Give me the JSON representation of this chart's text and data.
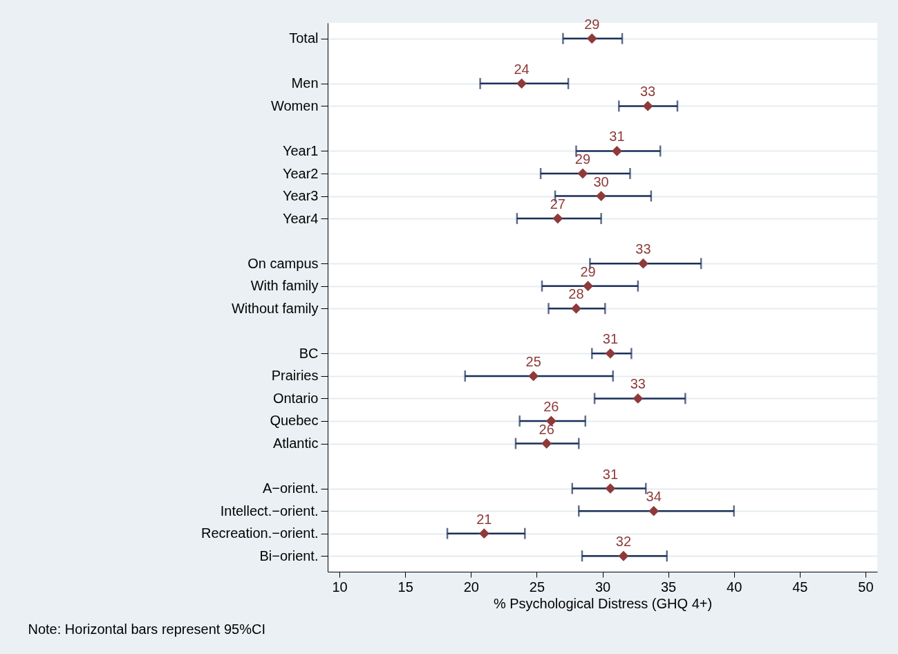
{
  "chart_data": {
    "type": "scatter",
    "orientation": "horizontal",
    "xlabel": "% Psychological Distress (GHQ 4+)",
    "annotations": [
      "Note: Horizontal bars represent 95%CI"
    ],
    "categories": [
      "Total",
      null,
      "Men",
      "Women",
      null,
      "Year1",
      "Year2",
      "Year3",
      "Year4",
      null,
      "On campus",
      "With family",
      "Without family",
      null,
      "BC",
      "Prairies",
      "Ontario",
      "Quebec",
      "Atlantic",
      null,
      "A−orient.",
      "Intellect.−orient.",
      "Recreation.−orient.",
      "Bi−orient."
    ],
    "series": [
      {
        "color": "#8e3a3a",
        "values": [
          29.2,
          null,
          23.85,
          33.45,
          null,
          31.1,
          28.5,
          29.9,
          26.6,
          null,
          33.1,
          28.9,
          28.0,
          null,
          30.6,
          24.75,
          32.7,
          26.1,
          25.75,
          null,
          30.6,
          33.9,
          21.0,
          31.6
        ],
        "errors": [
          [
            27.0,
            31.5
          ],
          null,
          [
            20.7,
            27.4
          ],
          [
            31.25,
            35.7
          ],
          null,
          [
            28.0,
            34.4
          ],
          [
            25.3,
            32.1
          ],
          [
            26.4,
            33.7
          ],
          [
            23.5,
            29.9
          ],
          null,
          [
            29.05,
            37.5
          ],
          [
            25.4,
            32.7
          ],
          [
            25.9,
            30.2
          ],
          null,
          [
            29.2,
            32.2
          ],
          [
            19.55,
            30.8
          ],
          [
            29.4,
            36.3
          ],
          [
            23.7,
            28.7
          ],
          [
            23.4,
            28.2
          ],
          null,
          [
            27.7,
            33.3
          ],
          [
            28.2,
            40.0
          ],
          [
            18.2,
            24.1
          ],
          [
            28.45,
            34.9
          ]
        ],
        "value_labels": [
          "29",
          null,
          "24",
          "33",
          null,
          "31",
          "29",
          "30",
          "27",
          null,
          "33",
          "29",
          "28",
          null,
          "31",
          "25",
          "33",
          "26",
          "26",
          null,
          "31",
          "34",
          "21",
          "32"
        ]
      }
    ],
    "xlim": [
      9.1,
      50.9
    ],
    "xticks": [
      10,
      15,
      20,
      25,
      30,
      35,
      40,
      45,
      50
    ],
    "marker": "diamond",
    "grid": "y"
  }
}
